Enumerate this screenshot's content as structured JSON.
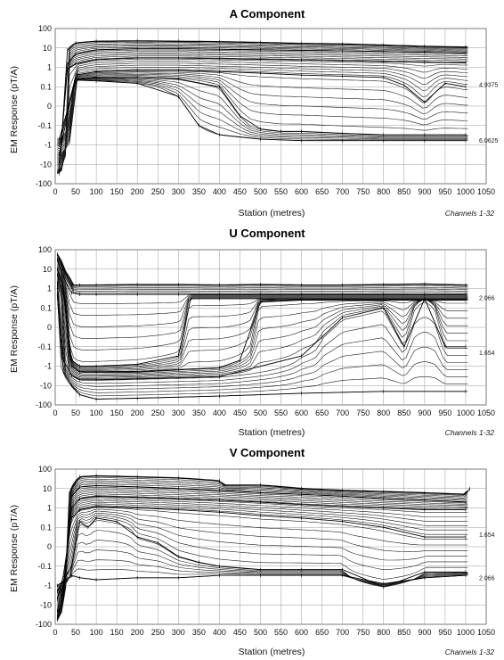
{
  "chart_data": [
    {
      "type": "line",
      "title": "A Component",
      "xlabel": "Station (metres)",
      "ylabel": "EM Response (pT/A)",
      "annotation": "Channels 1-32",
      "x_ticks": [
        "0",
        "50",
        "100",
        "150",
        "200",
        "250",
        "300",
        "350",
        "400",
        "450",
        "500",
        "550",
        "600",
        "650",
        "700",
        "750",
        "800",
        "850",
        "900",
        "950",
        "1000",
        "1050"
      ],
      "y_ticks": [
        "100",
        "10",
        "1",
        "0.1",
        "0",
        "-0.1",
        "-1",
        "-10",
        "-100"
      ],
      "xlim": [
        0,
        1050
      ],
      "yscale": "symlog",
      "grid": true,
      "channel_count": 32,
      "series": [
        {
          "x": [
            10,
            30,
            50,
            100,
            200,
            300,
            400,
            500,
            600,
            700,
            800,
            900,
            1000
          ],
          "y": [
            -30,
            8,
            18,
            22,
            23,
            22,
            21,
            19,
            17,
            16,
            14,
            12,
            11
          ]
        },
        {
          "x": [
            10,
            30,
            50,
            100,
            200,
            300,
            400,
            500,
            600,
            700,
            800,
            900,
            1000
          ],
          "y": [
            -20,
            1.5,
            5,
            8,
            9,
            9,
            8.5,
            8,
            7.5,
            7,
            6.5,
            6,
            5.5
          ]
        },
        {
          "x": [
            10,
            30,
            50,
            100,
            200,
            300,
            400,
            500,
            600,
            700,
            800,
            900,
            1000
          ],
          "y": [
            -8,
            0.8,
            1.5,
            2.5,
            3,
            3,
            2.8,
            2.6,
            2.4,
            2.2,
            2,
            1.8,
            1.7
          ]
        },
        {
          "x": [
            10,
            50,
            100,
            200,
            300,
            400,
            500,
            600,
            700,
            800,
            850,
            900,
            950,
            1000
          ],
          "y": [
            -3,
            0.4,
            0.6,
            0.7,
            0.7,
            0.6,
            0.5,
            0.4,
            0.35,
            0.3,
            0.12,
            0.02,
            0.15,
            0.1
          ]
        },
        {
          "x": [
            10,
            50,
            100,
            200,
            300,
            400,
            450,
            500,
            550,
            600,
            700,
            800,
            900,
            1000
          ],
          "y": [
            -1,
            0.25,
            0.3,
            0.3,
            0.25,
            0.1,
            -0.05,
            -0.15,
            -0.2,
            -0.2,
            -0.25,
            -0.3,
            -0.3,
            -0.3
          ]
        },
        {
          "x": [
            10,
            50,
            100,
            200,
            300,
            350,
            400,
            500,
            600,
            700,
            800,
            900,
            1000
          ],
          "y": [
            -0.5,
            0.22,
            0.2,
            0.15,
            0.05,
            -0.1,
            -0.3,
            -0.5,
            -0.6,
            -0.6,
            -0.6,
            -0.6,
            -0.6
          ]
        }
      ],
      "end_labels": [
        "4.9375",
        "6.0625"
      ]
    },
    {
      "type": "line",
      "title": "U Component",
      "xlabel": "Station (metres)",
      "ylabel": "EM Response (pT/A)",
      "annotation": "Channels 1-32",
      "x_ticks": [
        "0",
        "50",
        "100",
        "150",
        "200",
        "250",
        "300",
        "350",
        "400",
        "450",
        "500",
        "550",
        "600",
        "650",
        "700",
        "750",
        "800",
        "850",
        "900",
        "950",
        "1000",
        "1050"
      ],
      "y_ticks": [
        "100",
        "10",
        "1",
        "0.1",
        "0",
        "-0.1",
        "-1",
        "-10",
        "-100"
      ],
      "xlim": [
        0,
        1050
      ],
      "yscale": "symlog",
      "grid": true,
      "channel_count": 32,
      "series": [
        {
          "x": [
            5,
            20,
            40,
            60,
            100,
            200,
            300,
            400,
            500,
            600,
            700,
            800,
            900,
            1000
          ],
          "y": [
            60,
            10,
            1.5,
            1.5,
            1.5,
            1.6,
            1.6,
            1.5,
            1.6,
            1.5,
            1.5,
            1.6,
            1.7,
            1.5
          ]
        },
        {
          "x": [
            5,
            20,
            40,
            60,
            100,
            200,
            300,
            400,
            500,
            600,
            700,
            800,
            900,
            1000
          ],
          "y": [
            30,
            4,
            0.6,
            0.5,
            0.5,
            0.5,
            0.5,
            0.5,
            0.5,
            0.5,
            0.5,
            0.5,
            0.5,
            0.5
          ]
        },
        {
          "x": [
            5,
            20,
            40,
            60,
            100,
            200,
            300,
            330,
            400,
            500,
            600,
            700,
            800,
            900,
            1000
          ],
          "y": [
            10,
            1,
            -0.5,
            -1,
            -1,
            -0.8,
            -0.3,
            0.3,
            0.3,
            0.3,
            0.3,
            0.3,
            0.3,
            0.3,
            0.3
          ]
        },
        {
          "x": [
            5,
            20,
            40,
            60,
            100,
            200,
            300,
            400,
            450,
            500,
            600,
            700,
            800,
            900,
            1000
          ],
          "y": [
            5,
            0.5,
            -1,
            -2,
            -2,
            -2,
            -1.5,
            -1.2,
            -0.5,
            0.2,
            0.25,
            0.25,
            0.25,
            0.25,
            0.25
          ]
        },
        {
          "x": [
            5,
            20,
            40,
            60,
            100,
            200,
            400,
            600,
            650,
            700,
            800,
            850,
            900,
            950,
            1000
          ],
          "y": [
            2,
            -0.5,
            -3,
            -5,
            -5,
            -4.5,
            -3.5,
            -0.3,
            -0.05,
            0.05,
            0.1,
            -0.1,
            0.3,
            -0.1,
            -0.1
          ]
        },
        {
          "x": [
            5,
            20,
            40,
            60,
            100,
            200,
            400,
            600,
            800,
            1000
          ],
          "y": [
            0.5,
            -2,
            -10,
            -30,
            -50,
            -45,
            -35,
            -25,
            -20,
            -20
          ]
        }
      ],
      "end_labels": [
        "2.066",
        "1.654"
      ]
    },
    {
      "type": "line",
      "title": "V Component",
      "xlabel": "Station (metres)",
      "ylabel": "EM Response (pT/A)",
      "annotation": "Channels 1-32",
      "x_ticks": [
        "0",
        "50",
        "100",
        "150",
        "200",
        "250",
        "300",
        "350",
        "400",
        "450",
        "500",
        "550",
        "600",
        "650",
        "700",
        "750",
        "800",
        "850",
        "900",
        "950",
        "1000",
        "1050"
      ],
      "y_ticks": [
        "100",
        "10",
        "1",
        "0.1",
        "0",
        "-0.1",
        "-1",
        "-10",
        "-100"
      ],
      "xlim": [
        0,
        1050
      ],
      "yscale": "symlog",
      "grid": true,
      "channel_count": 32,
      "series": [
        {
          "x": [
            5,
            20,
            40,
            60,
            100,
            200,
            300,
            400,
            410,
            500,
            600,
            700,
            800,
            900,
            1000,
            1010
          ],
          "y": [
            -60,
            -5,
            10,
            40,
            45,
            40,
            35,
            25,
            15,
            15,
            10,
            8,
            7,
            6,
            5,
            10
          ]
        },
        {
          "x": [
            5,
            20,
            40,
            60,
            100,
            200,
            300,
            400,
            500,
            600,
            700,
            800,
            900,
            1000
          ],
          "y": [
            -40,
            -2,
            4,
            12,
            14,
            12,
            10,
            8,
            6,
            5,
            4,
            3,
            2.5,
            2
          ]
        },
        {
          "x": [
            5,
            20,
            40,
            60,
            100,
            200,
            300,
            400,
            500,
            600,
            700,
            800,
            900,
            1000
          ],
          "y": [
            -20,
            -1,
            1,
            3,
            4,
            3.5,
            3,
            2.5,
            2,
            1.5,
            1.2,
            1,
            0.8,
            0.8
          ]
        },
        {
          "x": [
            5,
            20,
            40,
            60,
            100,
            200,
            300,
            400,
            500,
            600,
            700,
            800,
            900,
            1000
          ],
          "y": [
            -5,
            -0.3,
            0.3,
            0.8,
            1.2,
            1,
            0.8,
            0.6,
            0.4,
            0.3,
            0.2,
            0.1,
            0.05,
            0.05
          ]
        },
        {
          "x": [
            5,
            40,
            60,
            80,
            100,
            150,
            200,
            250,
            300,
            350,
            400,
            500,
            600,
            700,
            800,
            900,
            1000
          ],
          "y": [
            -2,
            -0.1,
            0.2,
            0.1,
            0.3,
            0.2,
            0.05,
            0.02,
            -0.05,
            -0.08,
            -0.1,
            -0.15,
            -0.15,
            -0.15,
            -1.2,
            -0.2,
            -0.2
          ]
        },
        {
          "x": [
            5,
            40,
            60,
            100,
            200,
            300,
            400,
            500,
            600,
            700,
            800,
            900,
            1000
          ],
          "y": [
            -1,
            -0.3,
            -0.4,
            -0.5,
            -0.4,
            -0.4,
            -0.3,
            -0.3,
            -0.3,
            -0.3,
            -0.8,
            -0.4,
            -0.3
          ]
        }
      ],
      "end_labels": [
        "1.654",
        "2.066"
      ]
    }
  ]
}
